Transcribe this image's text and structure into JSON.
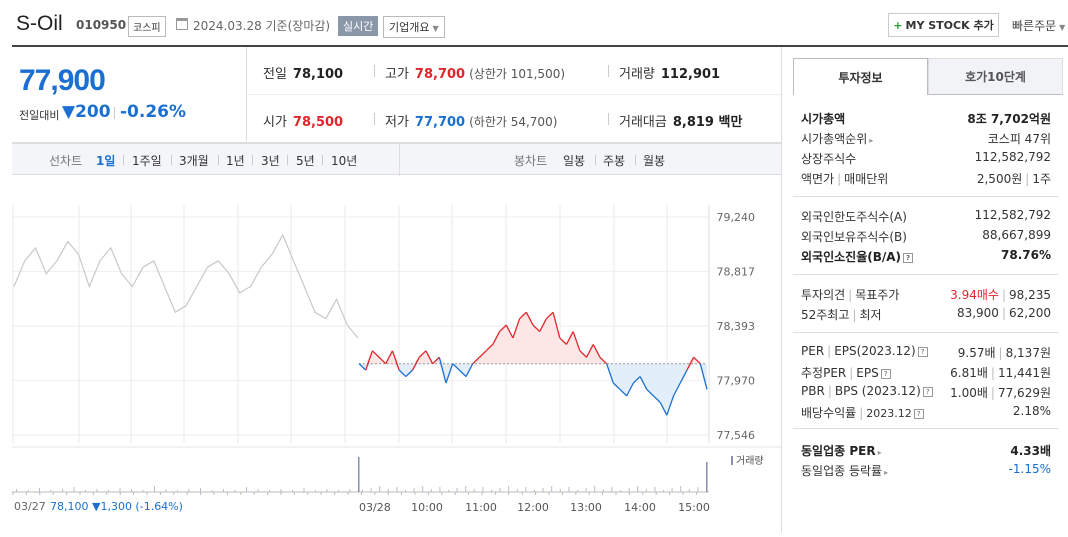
{
  "header": {
    "company": "S-Oil",
    "code": "010950",
    "market_badge": "코스피",
    "date_text": "2024.03.28 기준(장마감)",
    "realtime_label": "실시간",
    "overview_label": "기업개요",
    "mystock_label": "MY STOCK 추가",
    "mystock_plus": "+",
    "quick_order": "빠른주문"
  },
  "price": {
    "now": "77,900",
    "change_label": "전일대비",
    "change": "▼200",
    "rate": "-0.26%"
  },
  "info": {
    "prev_label": "전일",
    "prev": "78,100",
    "high_label": "고가",
    "high": "78,700",
    "upper_limit": "(상한가 101,500)",
    "volume_label": "거래량",
    "volume": "112,901",
    "open_label": "시가",
    "open": "78,500",
    "low_label": "저가",
    "low": "77,700",
    "lower_limit": "(하한가 54,700)",
    "amount_label": "거래대금",
    "amount": "8,819 백만"
  },
  "tabs": {
    "line_label": "선차트",
    "periods": [
      "1일",
      "1주일",
      "3개월",
      "1년",
      "3년",
      "5년",
      "10년"
    ],
    "candle_label": "봉차트",
    "candles": [
      "일봉",
      "주봉",
      "월봉"
    ]
  },
  "chart_data": {
    "type": "line",
    "y_ticks": [
      "79,240",
      "78,817",
      "78,393",
      "77,970",
      "77,546"
    ],
    "ylim": [
      77546,
      79240
    ],
    "base_price": 78100,
    "prev_day_label": "03/27",
    "prev_day_summary": "78,100 ▼1,300 (-1.64%)",
    "x_ticks": [
      "03/28",
      "10:00",
      "11:00",
      "12:00",
      "13:00",
      "14:00",
      "15:00"
    ],
    "volume_legend": "거래량",
    "prev_day_values": [
      78700,
      78900,
      79000,
      78800,
      78900,
      79050,
      78950,
      78700,
      78900,
      79000,
      78800,
      78700,
      78850,
      78900,
      78700,
      78500,
      78550,
      78700,
      78850,
      78900,
      78800,
      78650,
      78700,
      78850,
      78950,
      79100,
      78900,
      78700,
      78500,
      78450,
      78600,
      78400,
      78300
    ],
    "today_values": [
      78100,
      78050,
      78200,
      78150,
      78100,
      78200,
      78050,
      78000,
      78050,
      78150,
      78200,
      78100,
      78150,
      77950,
      78100,
      78050,
      78000,
      78100,
      78150,
      78200,
      78250,
      78350,
      78400,
      78300,
      78450,
      78500,
      78400,
      78350,
      78450,
      78500,
      78300,
      78250,
      78350,
      78200,
      78150,
      78250,
      78150,
      78100,
      77950,
      77900,
      77850,
      77950,
      78000,
      77900,
      77850,
      77800,
      77700,
      77850,
      77950,
      78050,
      78150,
      78100,
      77900
    ]
  },
  "side": {
    "tab_active": "투자정보",
    "tab_other": "호가10단계",
    "rows1": [
      {
        "label": "시가총액",
        "value": "8조 7,702억원",
        "bold": true
      },
      {
        "label": "시가총액순위",
        "value": "코스피 47위"
      },
      {
        "label": "상장주식수",
        "value": "112,582,792"
      },
      {
        "label": "액면가",
        "label2": "매매단위",
        "value": "2,500원",
        "value2": "1주"
      }
    ],
    "rows2": [
      {
        "label": "외국인한도주식수(A)",
        "value": "112,582,792"
      },
      {
        "label": "외국인보유주식수(B)",
        "value": "88,667,899"
      },
      {
        "label": "외국인소진율(B/A)",
        "value": "78.76%",
        "bold": true
      }
    ],
    "rows3": [
      {
        "label": "투자의견",
        "label2": "목표주가",
        "value": "3.94매수",
        "value2": "98,235"
      },
      {
        "label": "52주최고",
        "label2": "최저",
        "value": "83,900",
        "value2": "62,200"
      }
    ],
    "rows4": [
      {
        "label": "PER",
        "label2": "EPS(2023.12)",
        "value": "9.57배",
        "value2": "8,137원"
      },
      {
        "label": "추정PER",
        "label2": "EPS",
        "value": "6.81배",
        "value2": "11,441원"
      },
      {
        "label": "PBR",
        "label2": "BPS (2023.12)",
        "value": "1.00배",
        "value2": "77,629원"
      },
      {
        "label": "배당수익률",
        "label2": "2023.12",
        "value": "2.18%"
      }
    ],
    "rows5": [
      {
        "label": "동일업종 PER",
        "value": "4.33배",
        "bold": true
      },
      {
        "label": "동일업종 등락률",
        "value": "-1.15%"
      }
    ],
    "colors": {
      "up": "#e0262b",
      "down": "#1a6fd1"
    }
  }
}
